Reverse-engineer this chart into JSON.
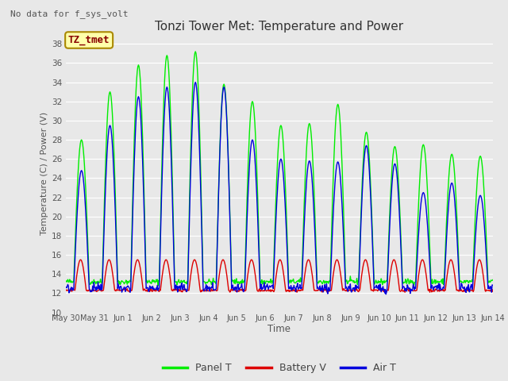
{
  "title": "Tonzi Tower Met: Temperature and Power",
  "ylabel": "Temperature (C) / Power (V)",
  "xlabel": "Time",
  "top_label": "No data for f_sys_volt",
  "annotation_label": "TZ_tmet",
  "ylim": [
    10,
    39
  ],
  "yticks": [
    10,
    12,
    14,
    16,
    18,
    20,
    22,
    24,
    26,
    28,
    30,
    32,
    34,
    36,
    38
  ],
  "xtick_labels": [
    "May 30",
    "May 31",
    "Jun 1",
    "Jun 2",
    "Jun 3",
    "Jun 4",
    "Jun 5",
    "Jun 6",
    "Jun 7",
    "Jun 8",
    "Jun 9",
    "Jun 10",
    "Jun 11",
    "Jun 12",
    "Jun 13",
    "Jun 14"
  ],
  "fig_bg_color": "#e8e8e8",
  "plot_bg_color": "#e8e8e8",
  "grid_color": "#ffffff",
  "panel_color": "#00ee00",
  "battery_color": "#dd0000",
  "air_color": "#0000dd",
  "line_width": 1.0,
  "legend_entries": [
    "Panel T",
    "Battery V",
    "Air T"
  ],
  "num_days": 15,
  "panel_day_peaks": [
    28.0,
    33.0,
    35.8,
    36.8,
    37.2,
    33.8,
    32.0,
    29.5,
    29.7,
    31.7,
    28.8,
    27.3,
    27.5,
    26.5,
    26.3
  ],
  "air_day_peaks": [
    24.8,
    29.5,
    32.5,
    33.5,
    34.0,
    33.5,
    28.0,
    26.0,
    25.8,
    25.7,
    27.4,
    25.5,
    22.5,
    23.5,
    22.2
  ],
  "battery_day_peaks": [
    15.5,
    15.5,
    15.5,
    15.5,
    15.5,
    15.5,
    15.5,
    15.5,
    15.5,
    15.5,
    15.5,
    15.5,
    15.5,
    15.5,
    15.5
  ],
  "night_base_panel": 13.2,
  "night_base_air": 12.5,
  "night_base_battery": 12.3
}
